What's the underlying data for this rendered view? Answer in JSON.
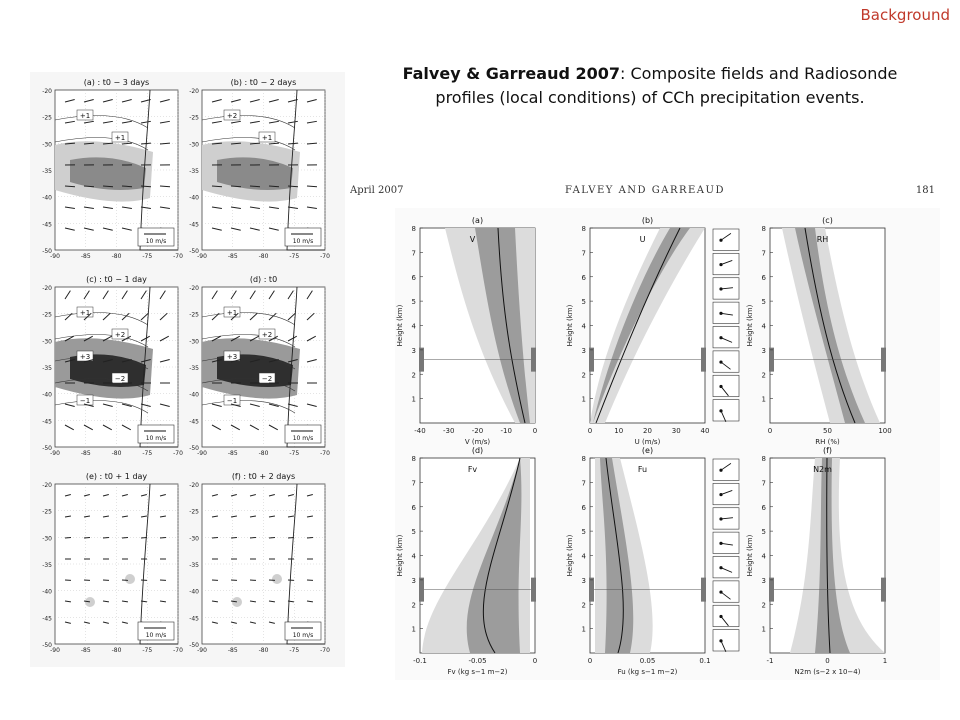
{
  "section_label": "Background",
  "caption": {
    "authors": "Falvey & Garreaud 2007",
    "text": ": Composite fields and Radiosonde profiles (local conditions) of CCh precipitation events."
  },
  "paper_header": {
    "left": "April 2007",
    "center": "FALVEY AND GARREAUD",
    "page": "181"
  },
  "composite_maps": {
    "panels": [
      {
        "title": "(a) : t0 − 3 days",
        "contours": [
          "+1",
          "+1"
        ]
      },
      {
        "title": "(b) : t0 − 2 days",
        "contours": [
          "+2",
          "+1"
        ]
      },
      {
        "title": "(c) : t0 − 1 day",
        "contours": [
          "+1",
          "+2",
          "+3",
          "−2",
          "−1"
        ]
      },
      {
        "title": "(d) : t0",
        "contours": [
          "+1",
          "+2",
          "+3",
          "−2",
          "−1"
        ]
      },
      {
        "title": "(e) : t0 + 1 day",
        "contours": []
      },
      {
        "title": "(f) : t0 + 2 days",
        "contours": []
      }
    ],
    "lat_ticks": [
      "-20",
      "-25",
      "-30",
      "-35",
      "-40",
      "-45",
      "-50"
    ],
    "lon_ticks": [
      "-90",
      "-85",
      "-80",
      "-75",
      "-70"
    ],
    "scale_label": "10 m/s"
  },
  "profiles": {
    "panels": [
      {
        "id": "(a)",
        "var": "V",
        "xticks": [
          "-40",
          "-30",
          "-20",
          "-10",
          "0"
        ],
        "xlabel": "V (m/s)"
      },
      {
        "id": "(b)",
        "var": "U",
        "xticks": [
          "0",
          "10",
          "20",
          "30",
          "40"
        ],
        "xlabel": "U (m/s)"
      },
      {
        "id": "(c)",
        "var": "RH",
        "xticks": [
          "0",
          "50",
          "100"
        ],
        "xlabel": "RH (%)"
      },
      {
        "id": "(d)",
        "var": "Fv",
        "xticks": [
          "-0.1",
          "-0.05",
          "0"
        ],
        "xlabel": "Fv (kg s−1 m−2)"
      },
      {
        "id": "(e)",
        "var": "Fu",
        "xticks": [
          "0",
          "0.05",
          "0.1"
        ],
        "xlabel": "Fu (kg s−1 m−2)"
      },
      {
        "id": "(f)",
        "var": "N2m",
        "xticks": [
          "-1",
          "0",
          "1"
        ],
        "xlabel": "N2m (s−2 x 10−4)"
      }
    ],
    "yticks": [
      "1",
      "2",
      "3",
      "4",
      "5",
      "6",
      "7",
      "8"
    ],
    "ylabel": "Height (km)"
  }
}
